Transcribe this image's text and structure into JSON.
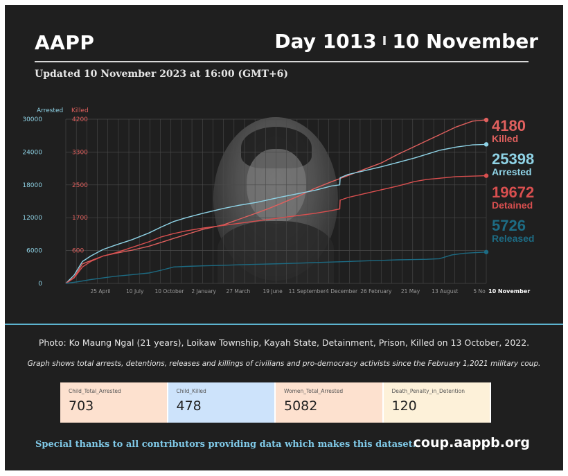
{
  "header": {
    "org": "AAPP",
    "day": "Day 1013",
    "separator": "I",
    "date": "10 November",
    "updated": "Updated 10 November 2023 at 16:00 (GMT+6)"
  },
  "colors": {
    "killed": "#e0605e",
    "arrested": "#8fd3e6",
    "detained": "#d94f4f",
    "released": "#1d6b83",
    "grid": "#4a4a4a",
    "accent_line": "#5cb3cf"
  },
  "chart_data": {
    "type": "line",
    "axis_titles": {
      "left_arrested": "Arrested",
      "left_killed": "Killed"
    },
    "arrested_ticks": [
      "0",
      "6000",
      "12000",
      "18000",
      "24000",
      "30000"
    ],
    "killed_ticks": [
      "600",
      "1700",
      "2500",
      "3300",
      "4200"
    ],
    "x_tick_labels": [
      "25 April",
      "10 July",
      "10 October",
      "2 January",
      "27 March",
      "19 June",
      "11 September",
      "4 December",
      "26 February",
      "21 May",
      "13 August",
      "5 No"
    ],
    "x_end_label": "10 November",
    "grid": true,
    "series": [
      {
        "name": "Killed",
        "key": "killed",
        "final_value": "4180",
        "axis": "killed",
        "x": [
          0,
          20,
          40,
          60,
          90,
          120,
          160,
          200,
          230,
          260,
          290,
          330,
          380,
          420,
          460,
          490,
          520,
          560,
          600,
          640,
          680,
          720,
          760,
          800,
          840,
          870,
          900,
          940,
          980,
          1013
        ],
        "y": [
          0,
          150,
          500,
          580,
          700,
          770,
          850,
          950,
          1050,
          1150,
          1250,
          1380,
          1500,
          1650,
          1800,
          1920,
          2050,
          2230,
          2430,
          2600,
          2760,
          2920,
          3080,
          3300,
          3500,
          3650,
          3800,
          4000,
          4150,
          4180
        ]
      },
      {
        "name": "Arrested",
        "key": "arrested",
        "final_value": "25398",
        "axis": "arrested",
        "x": [
          0,
          20,
          40,
          60,
          90,
          120,
          160,
          200,
          230,
          260,
          290,
          330,
          380,
          420,
          460,
          490,
          520,
          560,
          600,
          640,
          660,
          661,
          680,
          720,
          760,
          800,
          840,
          870,
          900,
          940,
          980,
          1013
        ],
        "y": [
          0,
          1500,
          4000,
          5000,
          6200,
          7000,
          8000,
          9200,
          10300,
          11300,
          12000,
          12800,
          13700,
          14300,
          14800,
          15300,
          15800,
          16400,
          17000,
          17800,
          18000,
          19300,
          19900,
          20600,
          21300,
          22100,
          22900,
          23600,
          24300,
          24900,
          25300,
          25398
        ]
      },
      {
        "name": "Detained",
        "key": "detained",
        "final_value": "19672",
        "axis": "arrested",
        "x": [
          0,
          20,
          40,
          60,
          90,
          120,
          160,
          200,
          230,
          260,
          290,
          330,
          380,
          420,
          460,
          490,
          520,
          560,
          600,
          640,
          660,
          661,
          680,
          720,
          760,
          800,
          840,
          870,
          900,
          940,
          980,
          1013
        ],
        "y": [
          0,
          1000,
          3000,
          4000,
          5000,
          5600,
          6600,
          7600,
          8500,
          9100,
          9600,
          10100,
          10600,
          11000,
          11400,
          11700,
          12000,
          12400,
          12800,
          13300,
          13600,
          15200,
          15700,
          16400,
          17100,
          17800,
          18600,
          19000,
          19200,
          19500,
          19600,
          19672
        ]
      },
      {
        "name": "Released",
        "key": "released",
        "final_value": "5726",
        "axis": "arrested",
        "x": [
          0,
          30,
          60,
          90,
          120,
          160,
          200,
          230,
          260,
          290,
          330,
          380,
          420,
          460,
          490,
          520,
          560,
          600,
          640,
          680,
          720,
          760,
          800,
          840,
          870,
          900,
          930,
          960,
          980,
          1013
        ],
        "y": [
          0,
          300,
          700,
          1000,
          1300,
          1600,
          1900,
          2400,
          3000,
          3100,
          3200,
          3300,
          3400,
          3500,
          3550,
          3600,
          3700,
          3800,
          3900,
          4000,
          4100,
          4200,
          4300,
          4350,
          4400,
          4500,
          5200,
          5500,
          5600,
          5726
        ]
      }
    ]
  },
  "photo_caption": "Photo: Ko Maung Ngal (21 years), Loikaw Township, Kayah State, Detainment, Prison, Killed on 13 October, 2022.",
  "graph_caption": "Graph shows total arrests, detentions, releases and killings of civilians and pro-democracy activists since the February 1,2021 military coup.",
  "stats": [
    {
      "label": "Child_Total_Arrested",
      "value": "703",
      "bg": "#fde1cf"
    },
    {
      "label": "Child_Killed",
      "value": "478",
      "bg": "#cde3fb"
    },
    {
      "label": "Women_Total_Arrested",
      "value": "5082",
      "bg": "#fde1cf"
    },
    {
      "label": "Death_Penalty_in_Detention",
      "value": "120",
      "bg": "#fdf1d9"
    }
  ],
  "footer": {
    "thanks": "Special thanks to all contributors providing data which makes this dataset.",
    "url": "coup.aappb.org"
  }
}
